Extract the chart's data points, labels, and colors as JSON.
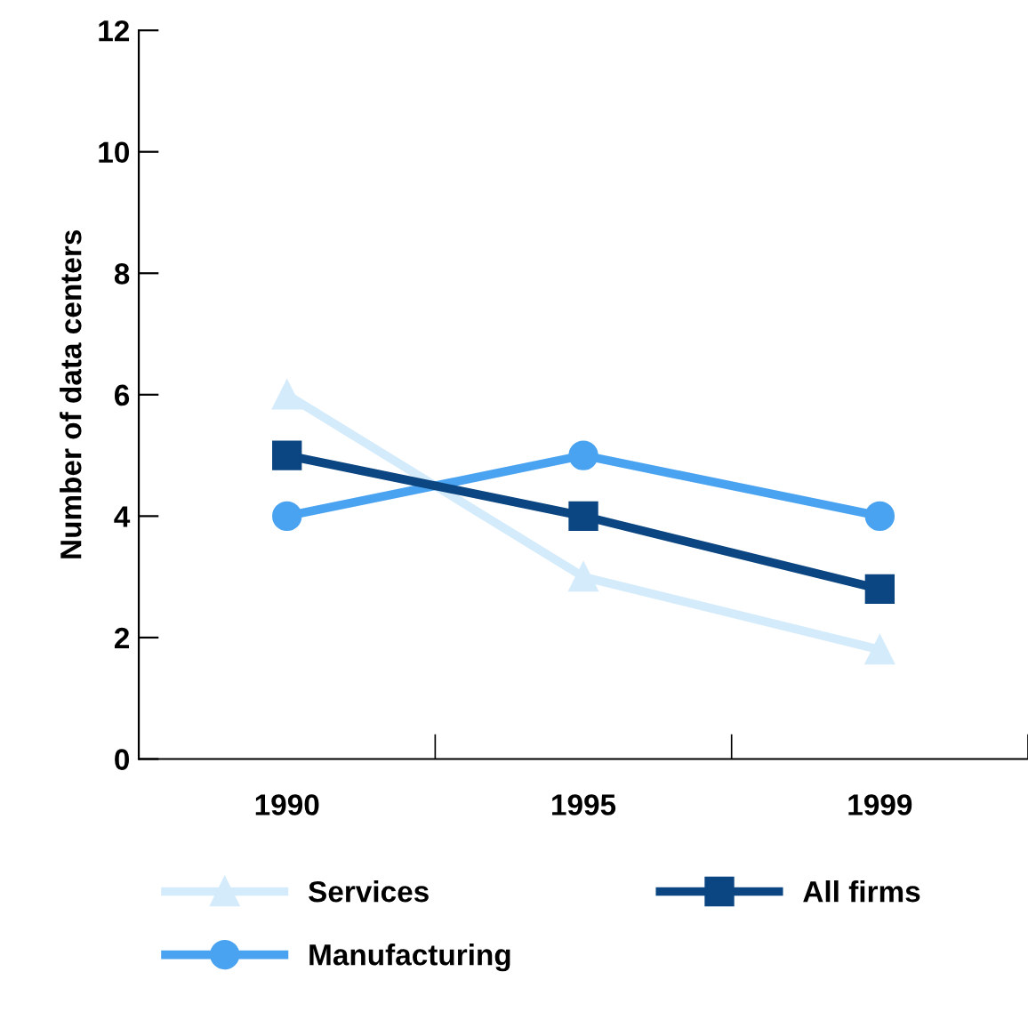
{
  "chart_data": {
    "type": "line",
    "ylabel": "Number of data centers",
    "categories": [
      "1990",
      "1995",
      "1999"
    ],
    "series": [
      {
        "name": "Services",
        "color": "#d4ebfb",
        "values": [
          6,
          3,
          1.8
        ],
        "marker": "triangle"
      },
      {
        "name": "Manufacturing",
        "color": "#4aa3f0",
        "values": [
          4,
          5,
          4
        ],
        "marker": "circle"
      },
      {
        "name": "All firms",
        "color": "#0b4682",
        "values": [
          5,
          4,
          2.8
        ],
        "marker": "square"
      }
    ],
    "ylim": [
      0,
      12
    ],
    "yticks": [
      0,
      2,
      4,
      6,
      8,
      10,
      12
    ],
    "grid": false,
    "legend": "bottom",
    "line_style": "solid"
  }
}
